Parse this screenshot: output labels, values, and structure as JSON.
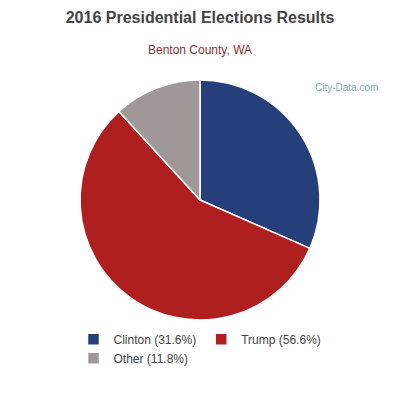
{
  "chart_data": {
    "type": "pie",
    "title": "2016 Presidential Elections Results",
    "subtitle": "Benton County, WA",
    "categories": [
      "Clinton (31.6%)",
      "Trump (56.6%)",
      "Other (11.8%)"
    ],
    "values": [
      31.6,
      56.6,
      11.8
    ],
    "colors": [
      "#253f7a",
      "#b01f1f",
      "#a09898"
    ],
    "annotations": [
      "City-Data.com"
    ],
    "legend": "bottom",
    "data_labels": false
  }
}
